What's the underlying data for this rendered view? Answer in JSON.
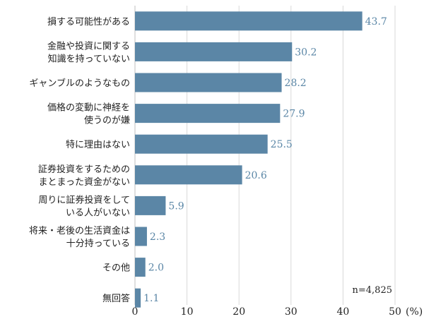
{
  "chart_data": {
    "type": "bar",
    "orientation": "horizontal",
    "categories": [
      [
        "損する可能性がある"
      ],
      [
        "金融や投資に関する",
        "知識を持っていない"
      ],
      [
        "ギャンブルのようなもの"
      ],
      [
        "価格の変動に神経を",
        "使うのが嫌"
      ],
      [
        "特に理由はない"
      ],
      [
        "証券投資をするための",
        "まとまった資金がない"
      ],
      [
        "周りに証券投資をして",
        "いる人がいない"
      ],
      [
        "将来・老後の生活資金は",
        "十分持っている"
      ],
      [
        "その他"
      ],
      [
        "無回答"
      ]
    ],
    "values": [
      43.7,
      30.2,
      28.2,
      27.9,
      25.5,
      20.6,
      5.9,
      2.3,
      2.0,
      1.1
    ],
    "value_labels": [
      "43.7",
      "30.2",
      "28.2",
      "27.9",
      "25.5",
      "20.6",
      "5.9",
      "2.3",
      "2.0",
      "1.1"
    ],
    "xlim": [
      0,
      50
    ],
    "xticks": [
      "0",
      "10",
      "20",
      "30",
      "40",
      "50"
    ],
    "xtick_values": [
      0,
      10,
      20,
      30,
      40,
      50
    ],
    "unit_label": "(%)",
    "note": "n=4,825",
    "grid": true,
    "bar_color": "#5b86a6",
    "label_color": "#5a86a6",
    "grid_color": "#d9d9d9"
  }
}
